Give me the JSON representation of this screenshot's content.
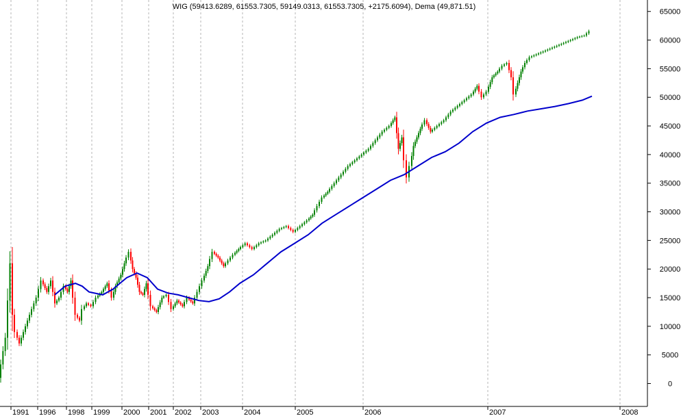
{
  "chart_data": {
    "type": "candlestick",
    "title": "WIG (59413.6289, 61553.7305, 59149.0313, 61553.7305, +2175.6094), Dema (49,871.51)",
    "ylim": [
      -4000,
      67000
    ],
    "y_ticks": [
      0,
      5000,
      10000,
      15000,
      20000,
      25000,
      30000,
      35000,
      40000,
      45000,
      50000,
      55000,
      60000,
      65000
    ],
    "y_tick_labels": [
      "0",
      "5000",
      "10000",
      "15000",
      "20000",
      "25000",
      "30000",
      "35000",
      "40000",
      "45000",
      "50000",
      "55000",
      "60000",
      "65000"
    ],
    "x_ticks": [
      "1991",
      "1996",
      "1998",
      "1999",
      "2000",
      "2001",
      "2002",
      "2003",
      "2004",
      "2005",
      "2006",
      "2007",
      "2008"
    ],
    "axis_position": "right",
    "grid": "vertical-dashed",
    "series": [
      {
        "name": "WIG",
        "kind": "price",
        "up_color": "#008000",
        "down_color": "#ff0000",
        "x": [
          0,
          10,
          17,
          20,
          24,
          30,
          36,
          45,
          55,
          62,
          70,
          76,
          82,
          88,
          95,
          100,
          105,
          112,
          118,
          122,
          128,
          135,
          142,
          150,
          158,
          165,
          170,
          178,
          183,
          190,
          195,
          200,
          205,
          210,
          215,
          222,
          230,
          238,
          245,
          252,
          260,
          268,
          275,
          283,
          290,
          297,
          305,
          312,
          320,
          328,
          335,
          342,
          350,
          360,
          370,
          380,
          390,
          400,
          410,
          420,
          430,
          440,
          450,
          458,
          465,
          472,
          480,
          490,
          500,
          510,
          520,
          530,
          540,
          550,
          560,
          570,
          578,
          583,
          588,
          592,
          596,
          600,
          605,
          610,
          615,
          622,
          630,
          640,
          650,
          660,
          670,
          680,
          690,
          698,
          705,
          712,
          720,
          728,
          735,
          742,
          748,
          752,
          757,
          762,
          768,
          775,
          785,
          795,
          805,
          815,
          825,
          835,
          845,
          855,
          862
        ],
        "y": [
          1000,
          8000,
          21000,
          12000,
          9000,
          7000,
          9000,
          12000,
          15000,
          18000,
          16000,
          18000,
          14000,
          15000,
          17000,
          16000,
          18000,
          12000,
          11000,
          13000,
          14000,
          13500,
          15000,
          16000,
          17500,
          15000,
          17000,
          19000,
          21000,
          23000,
          20000,
          18500,
          16000,
          15500,
          17500,
          13500,
          12500,
          15000,
          15500,
          13000,
          14500,
          13500,
          15000,
          14000,
          16000,
          18000,
          20500,
          23000,
          22000,
          20500,
          21500,
          22500,
          23500,
          24500,
          23500,
          24500,
          25000,
          26000,
          27000,
          27500,
          26500,
          27500,
          28500,
          29500,
          31000,
          32500,
          33500,
          35000,
          36500,
          38000,
          39000,
          40000,
          41000,
          42500,
          44000,
          45000,
          46500,
          41000,
          43000,
          39000,
          36000,
          38000,
          41500,
          43000,
          44500,
          46000,
          44000,
          45000,
          46000,
          47500,
          48500,
          49500,
          50500,
          52000,
          50000,
          51000,
          53500,
          54500,
          55500,
          56000,
          53500,
          50500,
          52500,
          54500,
          56000,
          57000,
          57500,
          58000,
          58500,
          59000,
          59500,
          60000,
          60500,
          60800,
          61553
        ]
      },
      {
        "name": "Dema",
        "kind": "line",
        "color": "#0000cc",
        "x": [
          80,
          95,
          110,
          120,
          130,
          150,
          165,
          175,
          185,
          200,
          215,
          230,
          245,
          260,
          275,
          290,
          305,
          320,
          335,
          350,
          370,
          390,
          410,
          430,
          450,
          470,
          490,
          510,
          530,
          550,
          570,
          590,
          610,
          630,
          650,
          670,
          690,
          710,
          730,
          750,
          770,
          790,
          810,
          830,
          850,
          864
        ],
        "y": [
          15500,
          17000,
          17500,
          17000,
          16000,
          15500,
          16500,
          17500,
          18500,
          19300,
          18500,
          16500,
          15800,
          15500,
          15000,
          14500,
          14300,
          14800,
          16000,
          17500,
          19000,
          21000,
          23000,
          24500,
          26000,
          28000,
          29500,
          31000,
          32500,
          34000,
          35500,
          36500,
          38000,
          39500,
          40500,
          42000,
          44000,
          45500,
          46500,
          47000,
          47600,
          48000,
          48400,
          48900,
          49500,
          50200
        ]
      }
    ]
  }
}
